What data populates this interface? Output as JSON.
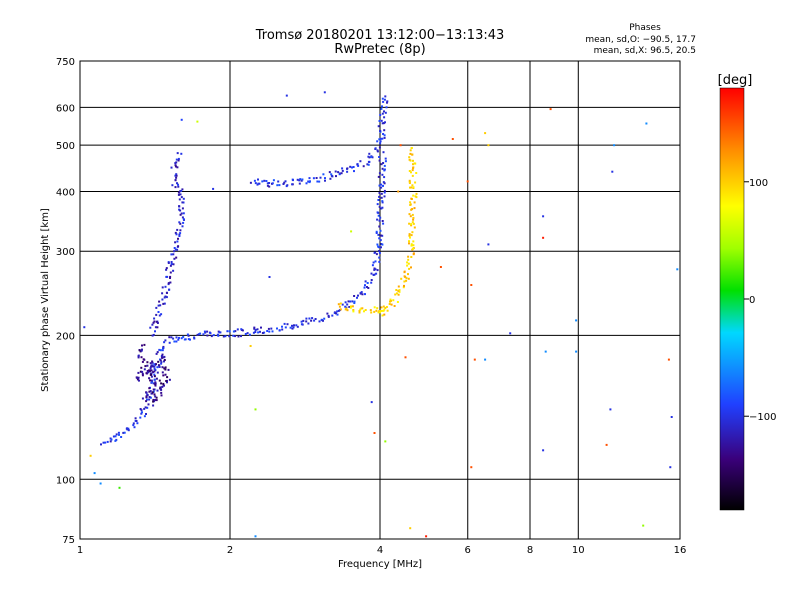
{
  "chart_data": {
    "type": "scatter",
    "title": "Tromsø 20180201 13:12:00−13:13:43",
    "subtitle": "RwPretec (8p)",
    "xlabel": "Frequency [MHz]",
    "ylabel": "Stationary phase Virtual Height [km]",
    "x_scale": "log2",
    "y_scale": "log",
    "xlim": [
      1,
      16
    ],
    "ylim": [
      75,
      750
    ],
    "x_ticks": [
      1,
      2,
      4,
      6,
      8,
      10,
      16
    ],
    "x_tick_labels": [
      "1",
      "2",
      "4",
      "6",
      "8",
      "10",
      "16"
    ],
    "y_ticks": [
      75,
      100,
      200,
      300,
      400,
      500,
      600,
      750
    ],
    "y_tick_labels": [
      "75",
      "100",
      "200",
      "300",
      "400",
      "500",
      "600",
      "750"
    ],
    "grid": true,
    "phase_box": {
      "heading": "Phases",
      "line1": "mean, sd,O: −90.5, 17.7",
      "line2": "mean, sd,X:  96.5, 20.5"
    },
    "colorbar": {
      "label": "[deg]",
      "range": [
        -180,
        180
      ],
      "ticks": [
        100,
        0,
        -100
      ],
      "tick_labels": [
        "100",
        "0",
        "−100"
      ]
    },
    "traces": [
      {
        "phase": -100,
        "points": [
          [
            1.12,
            120
          ],
          [
            1.15,
            121
          ],
          [
            1.2,
            123
          ],
          [
            1.25,
            127
          ],
          [
            1.3,
            132
          ],
          [
            1.35,
            140
          ],
          [
            1.38,
            150
          ],
          [
            1.4,
            160
          ],
          [
            1.42,
            172
          ],
          [
            1.45,
            182
          ],
          [
            1.48,
            190
          ],
          [
            1.52,
            195
          ],
          [
            1.58,
            198
          ],
          [
            1.65,
            199
          ],
          [
            1.75,
            200
          ],
          [
            1.85,
            201
          ],
          [
            1.95,
            201
          ],
          [
            2.05,
            202
          ],
          [
            2.2,
            204
          ],
          [
            2.4,
            206
          ],
          [
            2.6,
            208
          ],
          [
            2.8,
            212
          ],
          [
            3.0,
            216
          ],
          [
            3.2,
            222
          ],
          [
            3.4,
            230
          ],
          [
            3.6,
            240
          ],
          [
            3.75,
            252
          ],
          [
            3.85,
            265
          ],
          [
            3.92,
            280
          ],
          [
            3.97,
            300
          ],
          [
            4.0,
            330
          ],
          [
            4.02,
            370
          ],
          [
            4.04,
            420
          ],
          [
            4.05,
            480
          ]
        ]
      },
      {
        "phase": -110,
        "points": [
          [
            1.4,
            200
          ],
          [
            1.42,
            215
          ],
          [
            1.45,
            230
          ],
          [
            1.48,
            245
          ],
          [
            1.5,
            260
          ],
          [
            1.52,
            280
          ],
          [
            1.55,
            300
          ],
          [
            1.58,
            325
          ],
          [
            1.6,
            350
          ],
          [
            1.6,
            380
          ],
          [
            1.58,
            400
          ],
          [
            1.55,
            420
          ],
          [
            1.55,
            450
          ],
          [
            1.58,
            480
          ]
        ]
      },
      {
        "phase": -100,
        "points": [
          [
            2.2,
            420
          ],
          [
            2.4,
            415
          ],
          [
            2.6,
            416
          ],
          [
            2.8,
            420
          ],
          [
            3.0,
            425
          ],
          [
            3.2,
            432
          ],
          [
            3.4,
            440
          ],
          [
            3.6,
            450
          ],
          [
            3.75,
            462
          ],
          [
            3.85,
            475
          ],
          [
            3.95,
            490
          ],
          [
            4.02,
            520
          ],
          [
            4.05,
            560
          ],
          [
            4.07,
            600
          ],
          [
            4.08,
            640
          ]
        ]
      },
      {
        "phase": -130,
        "points": [
          [
            1.3,
            160
          ],
          [
            1.33,
            170
          ],
          [
            1.36,
            165
          ],
          [
            1.39,
            175
          ],
          [
            1.42,
            168
          ],
          [
            1.45,
            180
          ],
          [
            1.48,
            170
          ],
          [
            1.5,
            160
          ],
          [
            1.35,
            150
          ],
          [
            1.4,
            145
          ],
          [
            1.45,
            155
          ],
          [
            1.3,
            185
          ],
          [
            1.35,
            190
          ]
        ]
      },
      {
        "phase": 100,
        "points": [
          [
            4.0,
            220
          ],
          [
            4.1,
            225
          ],
          [
            4.2,
            232
          ],
          [
            4.3,
            240
          ],
          [
            4.4,
            250
          ],
          [
            4.5,
            262
          ],
          [
            4.55,
            275
          ],
          [
            4.6,
            290
          ],
          [
            4.62,
            310
          ],
          [
            4.65,
            340
          ],
          [
            4.66,
            380
          ],
          [
            4.66,
            420
          ],
          [
            4.64,
            460
          ],
          [
            4.6,
            500
          ]
        ]
      },
      {
        "phase": 95,
        "points": [
          [
            3.3,
            230
          ],
          [
            3.5,
            228
          ],
          [
            3.7,
            226
          ],
          [
            3.9,
            226
          ],
          [
            4.05,
            228
          ]
        ]
      }
    ],
    "scatter_points": [
      {
        "x": 1.6,
        "y": 565,
        "phase": -90
      },
      {
        "x": 1.72,
        "y": 560,
        "phase": 60
      },
      {
        "x": 2.6,
        "y": 635,
        "phase": -100
      },
      {
        "x": 3.1,
        "y": 645,
        "phase": -100
      },
      {
        "x": 5.6,
        "y": 515,
        "phase": 150
      },
      {
        "x": 6.5,
        "y": 530,
        "phase": 100
      },
      {
        "x": 6.0,
        "y": 420,
        "phase": 150
      },
      {
        "x": 6.6,
        "y": 310,
        "phase": -100
      },
      {
        "x": 6.1,
        "y": 255,
        "phase": 150
      },
      {
        "x": 6.6,
        "y": 500,
        "phase": 100
      },
      {
        "x": 7.3,
        "y": 202,
        "phase": -100
      },
      {
        "x": 8.5,
        "y": 355,
        "phase": -100
      },
      {
        "x": 8.5,
        "y": 320,
        "phase": 170
      },
      {
        "x": 8.8,
        "y": 595,
        "phase": 150
      },
      {
        "x": 8.6,
        "y": 185,
        "phase": -60
      },
      {
        "x": 9.9,
        "y": 185,
        "phase": -60
      },
      {
        "x": 9.9,
        "y": 215,
        "phase": -60
      },
      {
        "x": 8.5,
        "y": 115,
        "phase": -100
      },
      {
        "x": 11.8,
        "y": 500,
        "phase": -60
      },
      {
        "x": 11.7,
        "y": 440,
        "phase": -100
      },
      {
        "x": 13.7,
        "y": 555,
        "phase": -60
      },
      {
        "x": 11.6,
        "y": 140,
        "phase": -100
      },
      {
        "x": 11.4,
        "y": 118,
        "phase": 150
      },
      {
        "x": 13.5,
        "y": 80,
        "phase": 40
      },
      {
        "x": 15.2,
        "y": 178,
        "phase": 150
      },
      {
        "x": 15.4,
        "y": 135,
        "phase": -100
      },
      {
        "x": 15.3,
        "y": 106,
        "phase": -100
      },
      {
        "x": 15.8,
        "y": 275,
        "phase": -60
      },
      {
        "x": 6.2,
        "y": 178,
        "phase": 150
      },
      {
        "x": 6.5,
        "y": 178,
        "phase": -60
      },
      {
        "x": 6.1,
        "y": 106,
        "phase": 150
      },
      {
        "x": 5.3,
        "y": 278,
        "phase": 150
      },
      {
        "x": 3.85,
        "y": 145,
        "phase": -100
      },
      {
        "x": 3.9,
        "y": 125,
        "phase": 150
      },
      {
        "x": 4.1,
        "y": 120,
        "phase": 40
      },
      {
        "x": 2.25,
        "y": 140,
        "phase": 40
      },
      {
        "x": 2.2,
        "y": 190,
        "phase": 100
      },
      {
        "x": 2.4,
        "y": 265,
        "phase": -100
      },
      {
        "x": 2.25,
        "y": 76,
        "phase": -60
      },
      {
        "x": 4.95,
        "y": 76,
        "phase": 170
      },
      {
        "x": 4.6,
        "y": 79,
        "phase": 100
      },
      {
        "x": 1.85,
        "y": 405,
        "phase": -100
      },
      {
        "x": 1.05,
        "y": 112,
        "phase": 100
      },
      {
        "x": 1.07,
        "y": 103,
        "phase": -60
      },
      {
        "x": 1.1,
        "y": 98,
        "phase": -60
      },
      {
        "x": 1.2,
        "y": 96,
        "phase": 20
      },
      {
        "x": 1.02,
        "y": 208,
        "phase": -100
      },
      {
        "x": 4.4,
        "y": 500,
        "phase": 150
      },
      {
        "x": 4.35,
        "y": 400,
        "phase": 120
      },
      {
        "x": 4.5,
        "y": 180,
        "phase": 150
      },
      {
        "x": 3.5,
        "y": 330,
        "phase": 60
      }
    ]
  }
}
